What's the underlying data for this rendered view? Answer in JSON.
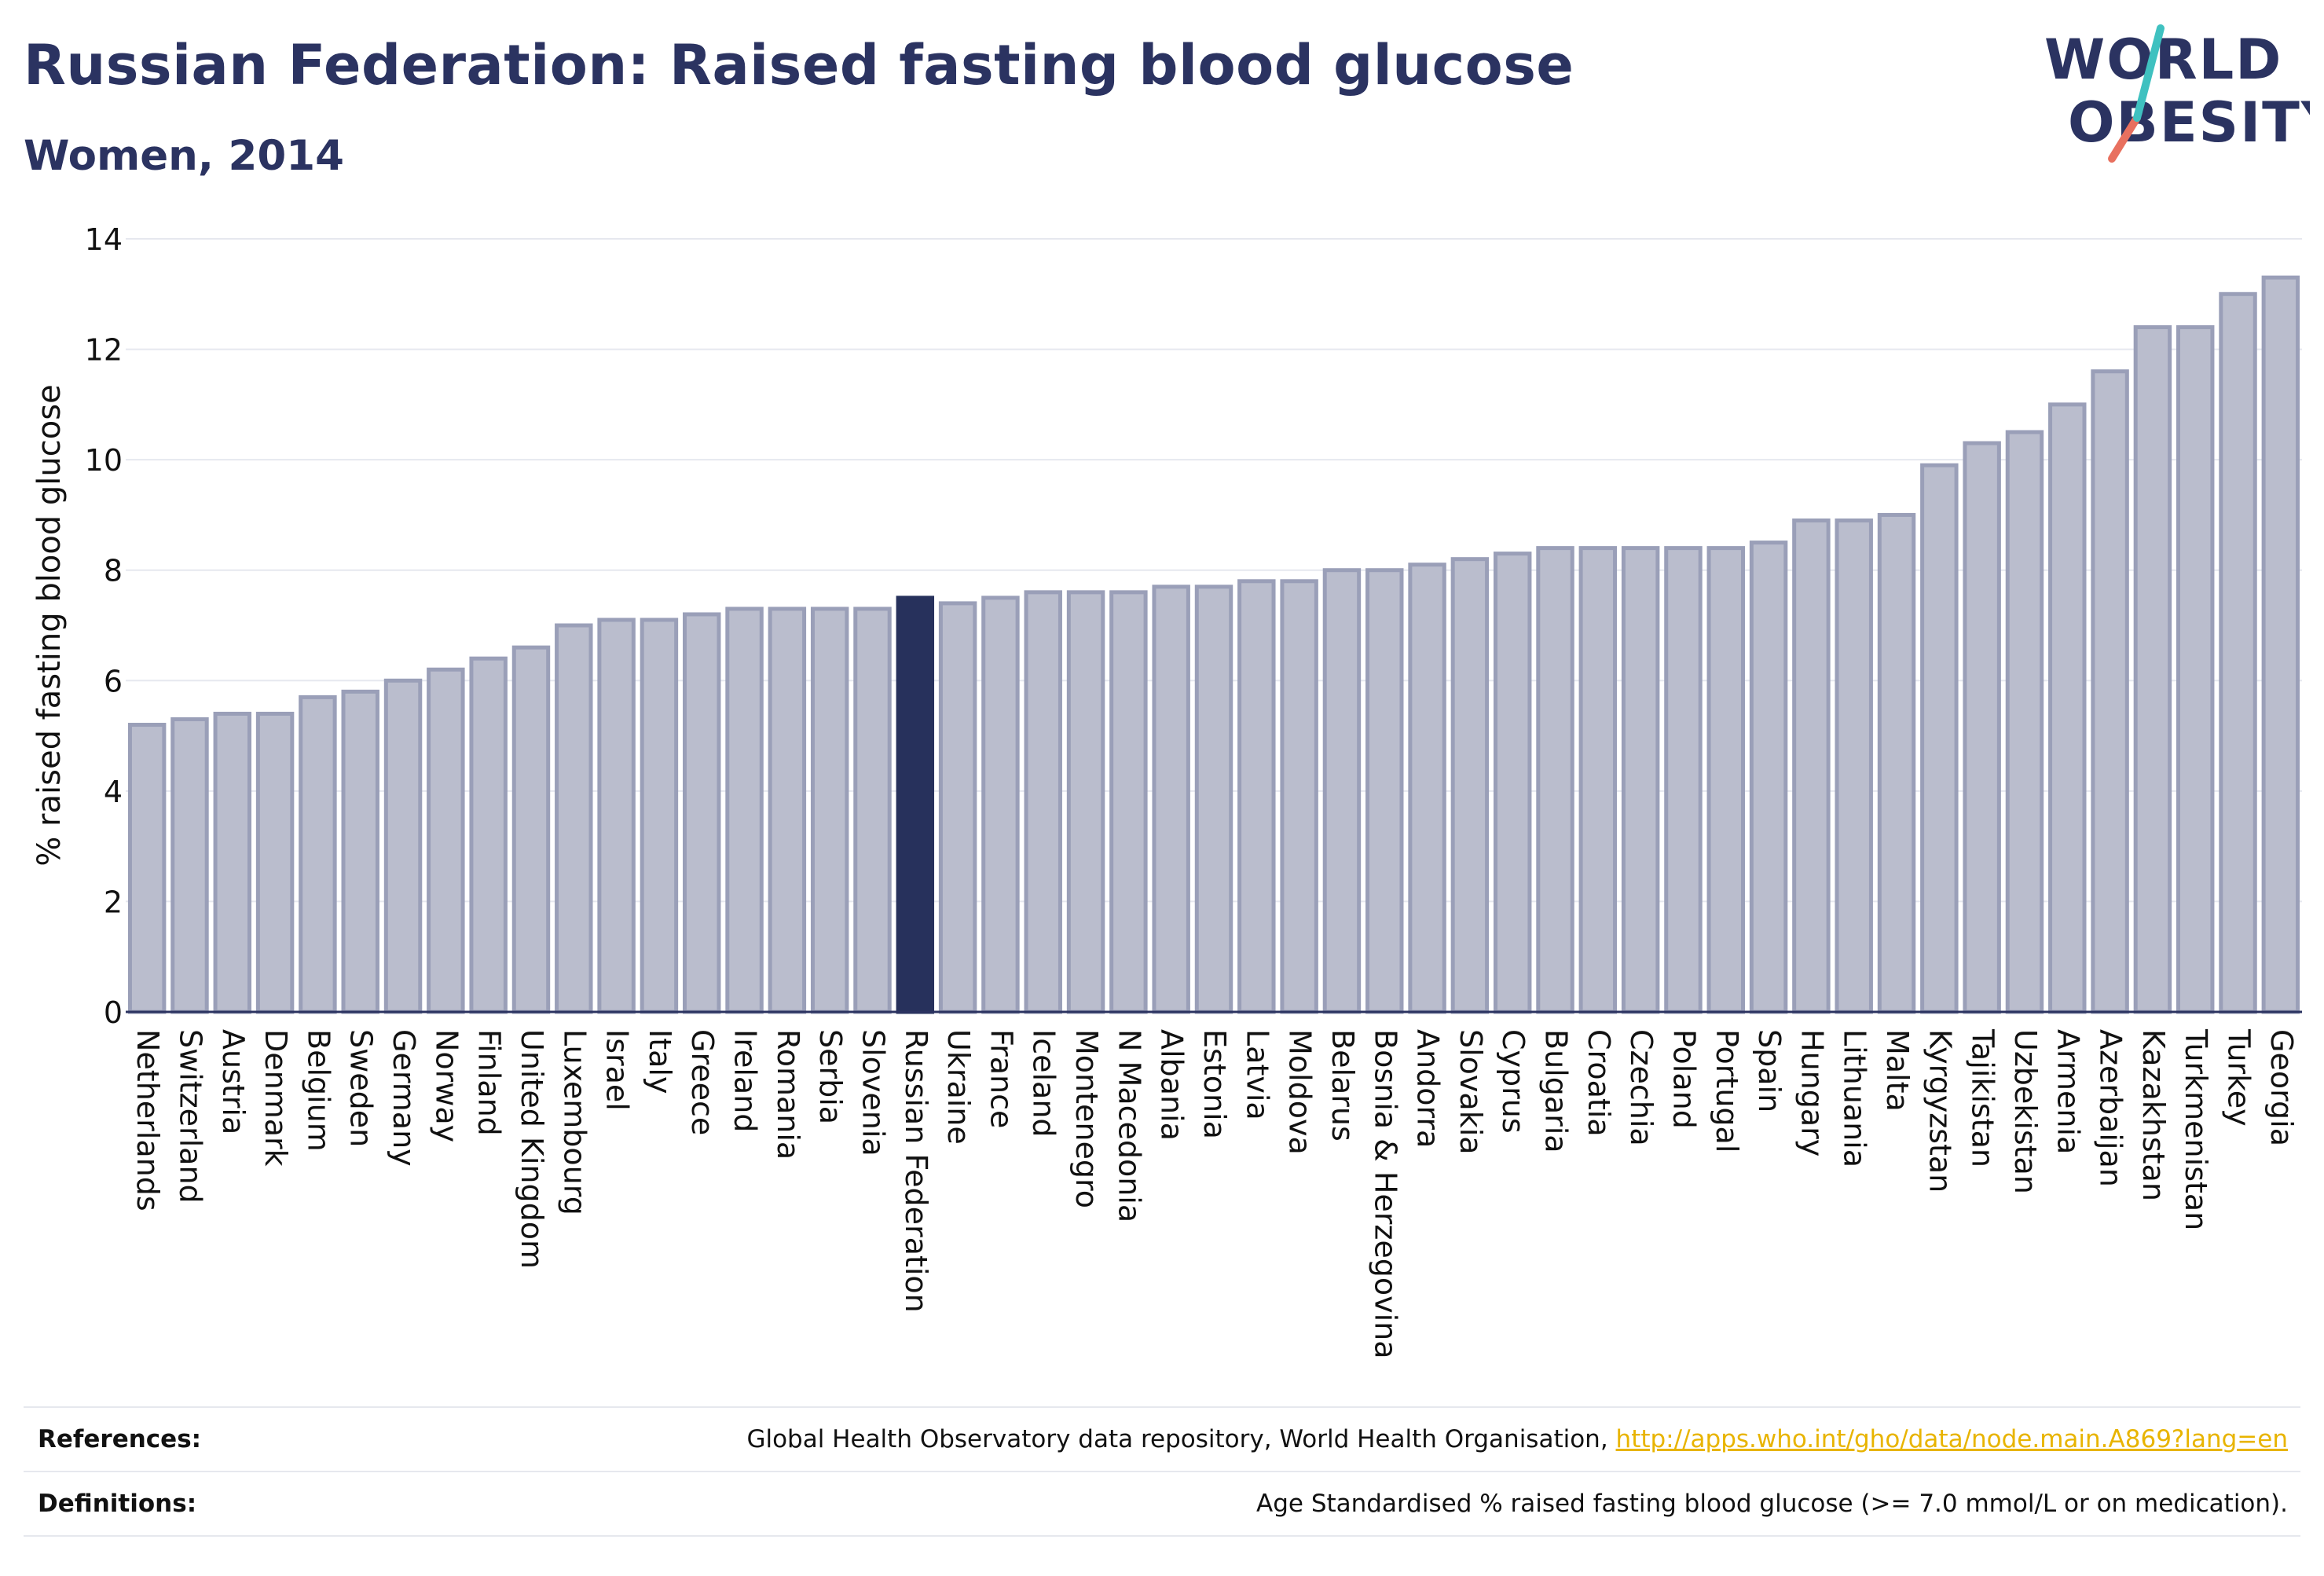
{
  "header": {
    "title": "Russian Federation: Raised fasting blood glucose",
    "subtitle": "Women, 2014"
  },
  "logo": {
    "line1": "WORLD",
    "line2": "OBESITY"
  },
  "colors": {
    "bar": "#babdcd",
    "bar_edge": "#9a9fb8",
    "highlight": "#27315c",
    "text": "#2b3361"
  },
  "chart_data": {
    "type": "bar",
    "ylabel": "% raised fasting blood glucose",
    "ylim": [
      0,
      14
    ],
    "yticks": [
      0,
      2,
      4,
      6,
      8,
      10,
      12,
      14
    ],
    "grid": true,
    "highlight": "Russian Federation",
    "categories": [
      "Netherlands",
      "Switzerland",
      "Austria",
      "Denmark",
      "Belgium",
      "Sweden",
      "Germany",
      "Norway",
      "Finland",
      "United Kingdom",
      "Luxembourg",
      "Israel",
      "Italy",
      "Greece",
      "Ireland",
      "Romania",
      "Serbia",
      "Slovenia",
      "Russian Federation",
      "Ukraine",
      "France",
      "Iceland",
      "Montenegro",
      "N Macedonia",
      "Albania",
      "Estonia",
      "Latvia",
      "Moldova",
      "Belarus",
      "Bosnia & Herzegovina",
      "Andorra",
      "Slovakia",
      "Cyprus",
      "Bulgaria",
      "Croatia",
      "Czechia",
      "Poland",
      "Portugal",
      "Spain",
      "Hungary",
      "Lithuania",
      "Malta",
      "Kyrgyzstan",
      "Tajikistan",
      "Uzbekistan",
      "Armenia",
      "Azerbaijan",
      "Kazakhstan",
      "Turkmenistan",
      "Turkey",
      "Georgia"
    ],
    "values": [
      5.2,
      5.3,
      5.4,
      5.4,
      5.7,
      5.8,
      6.0,
      6.2,
      6.4,
      6.6,
      7.0,
      7.1,
      7.1,
      7.2,
      7.3,
      7.3,
      7.3,
      7.3,
      7.5,
      7.4,
      7.5,
      7.6,
      7.6,
      7.6,
      7.7,
      7.7,
      7.8,
      7.8,
      8.0,
      8.0,
      8.1,
      8.2,
      8.3,
      8.4,
      8.4,
      8.4,
      8.4,
      8.4,
      8.5,
      8.9,
      8.9,
      9.0,
      9.9,
      10.3,
      10.5,
      11.0,
      11.6,
      12.4,
      12.4,
      13.0,
      13.3
    ]
  },
  "footer": {
    "references_label": "References:",
    "references_text": "Global Health Observatory data repository, World Health Organisation, ",
    "references_link": "http://apps.who.int/gho/data/node.main.A869?lang=en",
    "definitions_label": "Definitions:",
    "definitions_text": "Age Standardised % raised fasting blood glucose (>= 7.0 mmol/L or on medication)."
  }
}
